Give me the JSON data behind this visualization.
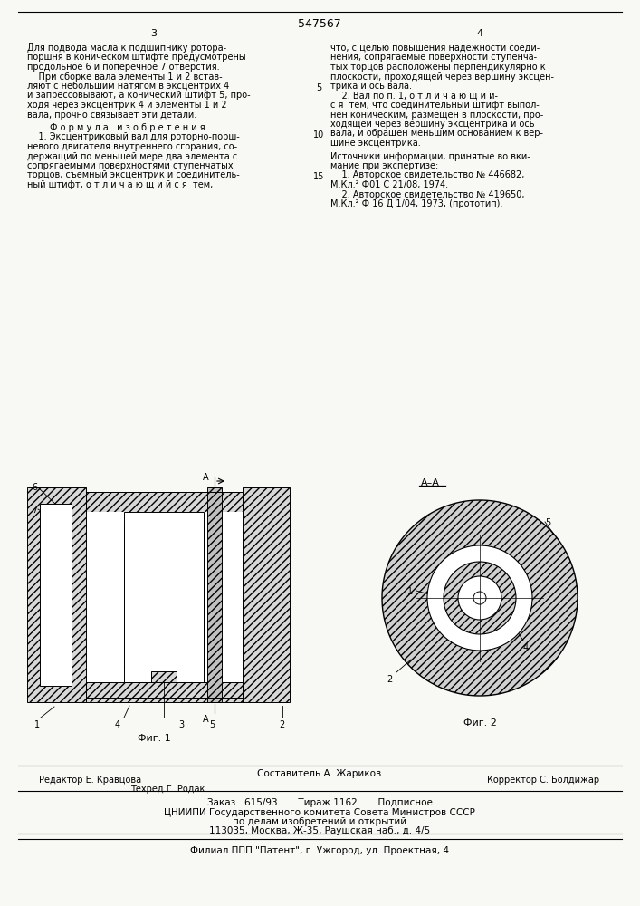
{
  "title": "547567",
  "page_left": "3",
  "page_right": "4",
  "col1_text": [
    "Для подвода масла к подшипнику ротора-",
    "поршня в коническом штифте предусмотрены",
    "продольное 6 и поперечное 7 отверстия.",
    "    При сборке вала элементы 1 и 2 встав-",
    "ляют с небольшим натягом в эксцентрих 4",
    "и запрессовывают, а конический штифт 5, про-",
    "ходя через эксцентрик 4 и элементы 1 и 2",
    "вала, прочно связывает эти детали."
  ],
  "formula_title": "Ф о р м у л а   и з о б р е т е н и я",
  "formula_text": [
    "    1. Эксцентриковый вал для роторно-порш-",
    "невого двигателя внутреннего сгорания, со-",
    "держащий по меньшей мере два элемента с",
    "сопрягаемыми поверхностями ступенчатых",
    "торцов, съемный эксцентрик и соединитель-",
    "ный штифт, о т л и ч а ю щ и й с я  тем,"
  ],
  "col2_text": [
    "что, с целью повышения надежности соеди-",
    "нения, сопрягаемые поверхности ступенча-",
    "тых торцов расположены перпендикулярно к",
    "плоскости, проходящей через вершину эксцен-",
    "трика и ось вала.",
    "    2. Вал по п. 1, о т л и ч а ю щ и й-",
    "с я  тем, что соединительный штифт выпол-",
    "нен коническим, размещен в плоскости, про-",
    "ходящей через вершину эксцентрика и ось",
    "вала, и обращен меньшим основанием к вер-",
    "шине эксцентрика."
  ],
  "sources_head": "Источники информации, принятые во вки-",
  "sources_head2": "мание при экспертизе:",
  "src1": "    1. Авторское свидетельство № 446682,",
  "src1b": "М.Кл.² Ф01 С 21/08, 1974.",
  "src2": "    2. Авторское свидетельство № 419650,",
  "src2b": "М.Кл.² Ф 16 Д 1/04, 1973, (прототип).",
  "fig1_label": "Фиг. 1",
  "fig2_label": "Фиг. 2",
  "fig2_section": "A–A",
  "editor": "Редактор Е. Кравцова",
  "composer": "Составитель А. Жариков",
  "techred": "Техред Г. Родак",
  "corrector": "Корректор С. Болдижар",
  "order": "Заказ   615/93       Тираж 1162       Подписное",
  "cniipи": "ЦНИИПИ Государственного комитета Совета Министров СССР",
  "affairs": "по делам изобретений и открытий",
  "address": "113035, Москва, Ж-35, Раушская наб., д. 4/5",
  "branch": "Филиал ППП \"Патент\", г. Ужгород, ул. Проектная, 4",
  "bg": "#f8f8f4",
  "lnum5": "5",
  "lnum10": "10",
  "lnum15": "15"
}
